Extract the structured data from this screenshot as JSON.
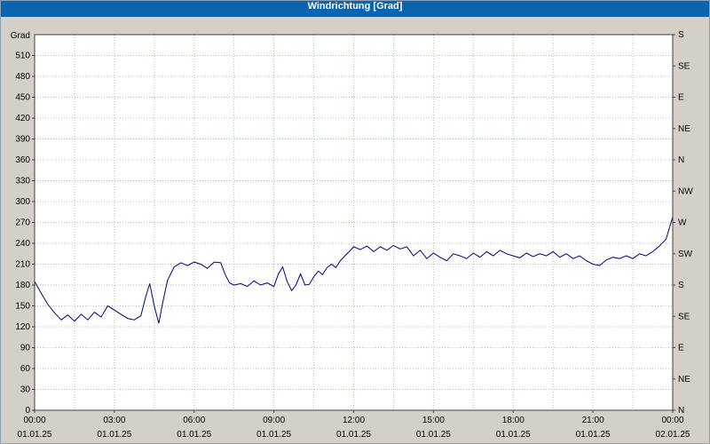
{
  "window": {
    "title": "Windrichtung [Grad]"
  },
  "colors": {
    "titlebar": "#0a64ae",
    "titlebar_text": "#ffffff",
    "background": "#d4d0c8",
    "plot_bg": "#ffffff",
    "grid": "#a8c8a8",
    "frame": "#404040",
    "line": "#000080",
    "tick_text": "#000000"
  },
  "chart_data": {
    "type": "line",
    "title": "Windrichtung [Grad]",
    "ylabel": "Grad",
    "xlabel": "",
    "ylim": [
      0,
      540
    ],
    "xlim": [
      0,
      24
    ],
    "grid": "dotted",
    "legend_position": "none",
    "y_ticks": [
      0,
      30,
      60,
      90,
      120,
      150,
      180,
      210,
      240,
      270,
      300,
      330,
      360,
      390,
      420,
      450,
      480,
      510
    ],
    "x_grid_step_hours": 1.5,
    "right_axis_labels": [
      {
        "value": 540,
        "label": "S"
      },
      {
        "value": 495,
        "label": "SE"
      },
      {
        "value": 450,
        "label": "E"
      },
      {
        "value": 405,
        "label": "NE"
      },
      {
        "value": 360,
        "label": "N"
      },
      {
        "value": 315,
        "label": "NW"
      },
      {
        "value": 270,
        "label": "W"
      },
      {
        "value": 225,
        "label": "SW"
      },
      {
        "value": 180,
        "label": "S"
      },
      {
        "value": 135,
        "label": "SE"
      },
      {
        "value": 90,
        "label": "E"
      },
      {
        "value": 45,
        "label": "NE"
      },
      {
        "value": 0,
        "label": "N"
      }
    ],
    "x_ticks": [
      {
        "hour": 0,
        "time": "00:00",
        "date": "01.01.25"
      },
      {
        "hour": 3,
        "time": "03:00",
        "date": "01.01.25"
      },
      {
        "hour": 6,
        "time": "06:00",
        "date": "01.01.25"
      },
      {
        "hour": 9,
        "time": "09:00",
        "date": "01.01.25"
      },
      {
        "hour": 12,
        "time": "12:00",
        "date": "01.01.25"
      },
      {
        "hour": 15,
        "time": "15:00",
        "date": "01.01.25"
      },
      {
        "hour": 18,
        "time": "18:00",
        "date": "01.01.25"
      },
      {
        "hour": 21,
        "time": "21:00",
        "date": "01.01.25"
      },
      {
        "hour": 24,
        "time": "00:00",
        "date": "02.01.25"
      }
    ],
    "series": [
      {
        "name": "Windrichtung",
        "x": [
          0,
          0.25,
          0.5,
          0.75,
          1,
          1.25,
          1.5,
          1.75,
          2,
          2.25,
          2.5,
          2.75,
          3,
          3.25,
          3.5,
          3.75,
          4,
          4.17,
          4.33,
          4.5,
          4.67,
          4.83,
          5,
          5.25,
          5.5,
          5.75,
          6,
          6.25,
          6.5,
          6.75,
          7,
          7.17,
          7.33,
          7.5,
          7.75,
          8,
          8.25,
          8.5,
          8.75,
          9,
          9.17,
          9.33,
          9.5,
          9.67,
          9.83,
          10,
          10.17,
          10.33,
          10.5,
          10.67,
          10.83,
          11,
          11.17,
          11.33,
          11.5,
          11.67,
          11.83,
          12,
          12.25,
          12.5,
          12.75,
          13,
          13.25,
          13.5,
          13.75,
          14,
          14.25,
          14.5,
          14.75,
          15,
          15.25,
          15.5,
          15.75,
          16,
          16.25,
          16.5,
          16.75,
          17,
          17.25,
          17.5,
          17.75,
          18,
          18.25,
          18.5,
          18.75,
          19,
          19.25,
          19.5,
          19.75,
          20,
          20.25,
          20.5,
          20.75,
          21,
          21.25,
          21.5,
          21.75,
          22,
          22.25,
          22.5,
          22.75,
          23,
          23.25,
          23.5,
          23.75,
          24
        ],
        "y": [
          185,
          168,
          152,
          140,
          130,
          137,
          128,
          138,
          130,
          141,
          134,
          150,
          144,
          138,
          132,
          130,
          136,
          162,
          182,
          150,
          125,
          157,
          187,
          206,
          212,
          208,
          213,
          210,
          204,
          213,
          212,
          195,
          183,
          180,
          182,
          178,
          186,
          180,
          183,
          178,
          196,
          206,
          185,
          172,
          180,
          196,
          180,
          181,
          192,
          200,
          195,
          205,
          210,
          205,
          215,
          222,
          228,
          235,
          231,
          236,
          228,
          235,
          230,
          237,
          232,
          235,
          222,
          230,
          218,
          226,
          220,
          215,
          225,
          222,
          218,
          226,
          220,
          228,
          222,
          230,
          225,
          222,
          219,
          226,
          221,
          225,
          222,
          228,
          220,
          225,
          218,
          222,
          215,
          210,
          208,
          216,
          220,
          218,
          222,
          218,
          225,
          222,
          228,
          236,
          246,
          278
        ]
      }
    ]
  }
}
